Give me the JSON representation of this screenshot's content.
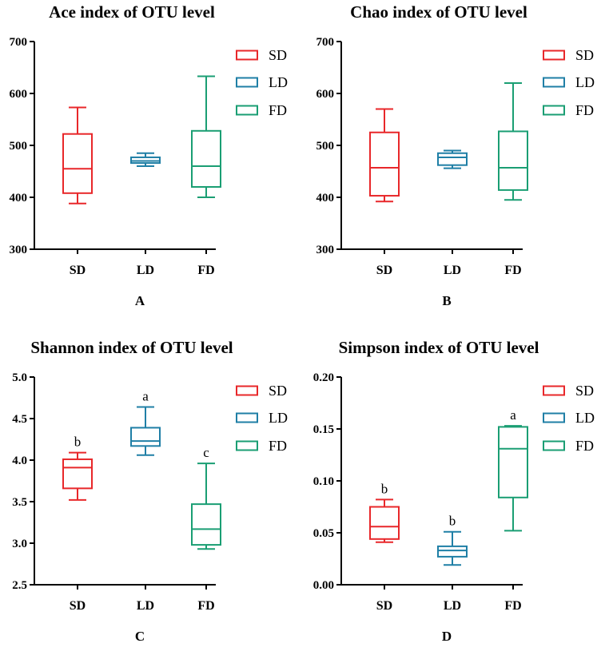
{
  "colors": {
    "SD": "#e8272a",
    "LD": "#1f7fa6",
    "FD": "#1a9e73",
    "axis": "#000000"
  },
  "chart_data": [
    {
      "type": "box",
      "title": "Ace index of OTU level",
      "panel_label": "A",
      "categories": [
        "SD",
        "LD",
        "FD"
      ],
      "legend": [
        "SD",
        "LD",
        "FD"
      ],
      "legend_position": "top-right",
      "ylim": [
        300,
        700
      ],
      "yticks": [
        "300",
        "400",
        "500",
        "600",
        "700"
      ],
      "ytick_values": [
        300,
        400,
        500,
        600,
        700
      ],
      "grid": false,
      "series": [
        {
          "name": "SD",
          "min": 388,
          "q1": 408,
          "median": 455,
          "q3": 522,
          "max": 573,
          "letter": ""
        },
        {
          "name": "LD",
          "min": 460,
          "q1": 466,
          "median": 470,
          "q3": 477,
          "max": 485,
          "letter": ""
        },
        {
          "name": "FD",
          "min": 400,
          "q1": 420,
          "median": 460,
          "q3": 528,
          "max": 633,
          "letter": ""
        }
      ]
    },
    {
      "type": "box",
      "title": "Chao index of OTU level",
      "panel_label": "B",
      "categories": [
        "SD",
        "LD",
        "FD"
      ],
      "legend": [
        "SD",
        "LD",
        "FD"
      ],
      "legend_position": "top-right",
      "ylim": [
        300,
        700
      ],
      "yticks": [
        "300",
        "400",
        "500",
        "600",
        "700"
      ],
      "ytick_values": [
        300,
        400,
        500,
        600,
        700
      ],
      "grid": false,
      "series": [
        {
          "name": "SD",
          "min": 392,
          "q1": 403,
          "median": 457,
          "q3": 525,
          "max": 570,
          "letter": ""
        },
        {
          "name": "LD",
          "min": 456,
          "q1": 462,
          "median": 477,
          "q3": 485,
          "max": 490,
          "letter": ""
        },
        {
          "name": "FD",
          "min": 395,
          "q1": 414,
          "median": 457,
          "q3": 527,
          "max": 620,
          "letter": ""
        }
      ]
    },
    {
      "type": "box",
      "title": "Shannon  index of OTU level",
      "panel_label": "C",
      "categories": [
        "SD",
        "LD",
        "FD"
      ],
      "legend": [
        "SD",
        "LD",
        "FD"
      ],
      "legend_position": "top-right",
      "ylim": [
        2.5,
        5.0
      ],
      "yticks": [
        "2.5",
        "3.0",
        "3.5",
        "4.0",
        "4.5",
        "5.0"
      ],
      "ytick_values": [
        2.5,
        3.0,
        3.5,
        4.0,
        4.5,
        5.0
      ],
      "grid": false,
      "series": [
        {
          "name": "SD",
          "min": 3.52,
          "q1": 3.66,
          "median": 3.91,
          "q3": 4.01,
          "max": 4.09,
          "letter": "b"
        },
        {
          "name": "LD",
          "min": 4.06,
          "q1": 4.17,
          "median": 4.23,
          "q3": 4.39,
          "max": 4.64,
          "letter": "a"
        },
        {
          "name": "FD",
          "min": 2.93,
          "q1": 2.98,
          "median": 3.17,
          "q3": 3.47,
          "max": 3.96,
          "letter": "c"
        }
      ]
    },
    {
      "type": "box",
      "title": "Simpson  index of OTU level",
      "panel_label": "D",
      "categories": [
        "SD",
        "LD",
        "FD"
      ],
      "legend": [
        "SD",
        "LD",
        "FD"
      ],
      "legend_position": "top-right",
      "ylim": [
        0.0,
        0.2
      ],
      "yticks": [
        "0.00",
        "0.05",
        "0.10",
        "0.15",
        "0.20"
      ],
      "ytick_values": [
        0.0,
        0.05,
        0.1,
        0.15,
        0.2
      ],
      "grid": false,
      "series": [
        {
          "name": "SD",
          "min": 0.041,
          "q1": 0.044,
          "median": 0.056,
          "q3": 0.075,
          "max": 0.082,
          "letter": "b"
        },
        {
          "name": "LD",
          "min": 0.019,
          "q1": 0.027,
          "median": 0.033,
          "q3": 0.037,
          "max": 0.051,
          "letter": "b"
        },
        {
          "name": "FD",
          "min": 0.052,
          "q1": 0.084,
          "median": 0.131,
          "q3": 0.152,
          "max": 0.153,
          "letter": "a"
        }
      ]
    }
  ]
}
